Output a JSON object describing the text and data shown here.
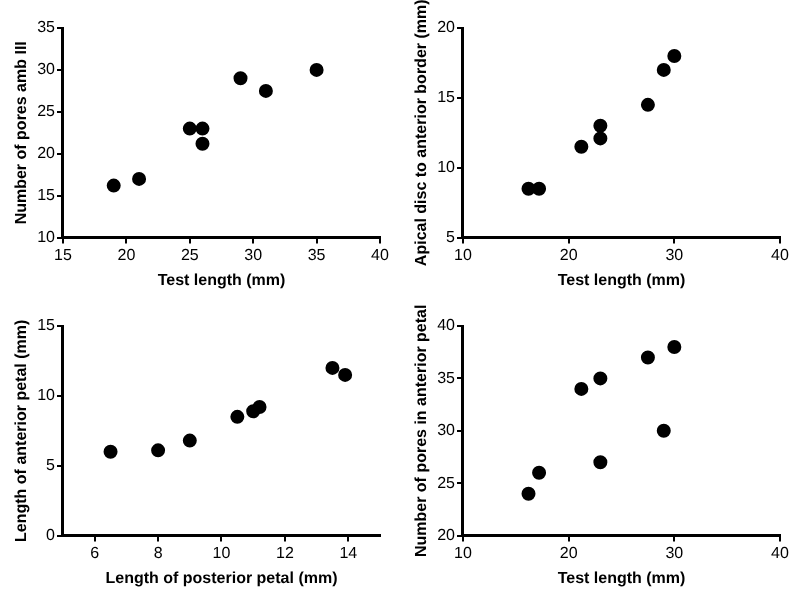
{
  "chart_data": [
    {
      "type": "scatter",
      "xlabel": "Test length (mm)",
      "ylabel": "Number of pores amb III",
      "xlim": [
        15,
        40
      ],
      "xticks": [
        15,
        20,
        25,
        30,
        35,
        40
      ],
      "ylim": [
        10,
        35
      ],
      "yticks": [
        10,
        15,
        20,
        25,
        30,
        35
      ],
      "grid": false,
      "legend": false,
      "marker": "circle",
      "series": [
        {
          "color": "#000000",
          "x": [
            19,
            21,
            25,
            26,
            26,
            29,
            31,
            35
          ],
          "values": [
            16.2,
            17,
            23,
            23,
            21.2,
            29,
            27.5,
            30
          ]
        }
      ]
    },
    {
      "type": "scatter",
      "xlabel": "Test length (mm)",
      "ylabel": "Apical disc to anterior border (mm)",
      "xlim": [
        10,
        40
      ],
      "xticks": [
        10,
        20,
        30,
        40
      ],
      "ylim": [
        5,
        20
      ],
      "yticks": [
        5,
        10,
        15,
        20
      ],
      "grid": false,
      "legend": false,
      "marker": "circle",
      "series": [
        {
          "color": "#000000",
          "x": [
            16.2,
            17.2,
            21.2,
            23,
            23,
            27.5,
            29,
            30
          ],
          "values": [
            8.5,
            8.5,
            11.5,
            13,
            12.1,
            14.5,
            17,
            18
          ]
        }
      ]
    },
    {
      "type": "scatter",
      "xlabel": "Length of posterior petal (mm)",
      "ylabel": "Length of anterior petal (mm)",
      "xlim": [
        5,
        15
      ],
      "xticks": [
        6,
        8,
        10,
        12,
        14
      ],
      "ylim": [
        0,
        15
      ],
      "yticks": [
        0,
        5,
        10,
        15
      ],
      "grid": false,
      "legend": false,
      "marker": "circle",
      "series": [
        {
          "color": "#000000",
          "x": [
            6.5,
            8,
            9,
            10.5,
            11,
            11.2,
            13.5,
            13.9
          ],
          "values": [
            6,
            6.1,
            6.8,
            8.5,
            8.9,
            9.2,
            12,
            11.5
          ]
        }
      ]
    },
    {
      "type": "scatter",
      "xlabel": "Test length (mm)",
      "ylabel": "Number of pores in anterior petal",
      "xlim": [
        10,
        40
      ],
      "xticks": [
        10,
        20,
        30,
        40
      ],
      "ylim": [
        20,
        40
      ],
      "yticks": [
        20,
        25,
        30,
        35,
        40
      ],
      "grid": false,
      "legend": false,
      "marker": "circle",
      "series": [
        {
          "color": "#000000",
          "x": [
            16.2,
            17.2,
            21.2,
            23,
            23,
            27.5,
            29,
            30
          ],
          "values": [
            24,
            26,
            34,
            35,
            27,
            37,
            30,
            38
          ]
        }
      ]
    }
  ]
}
